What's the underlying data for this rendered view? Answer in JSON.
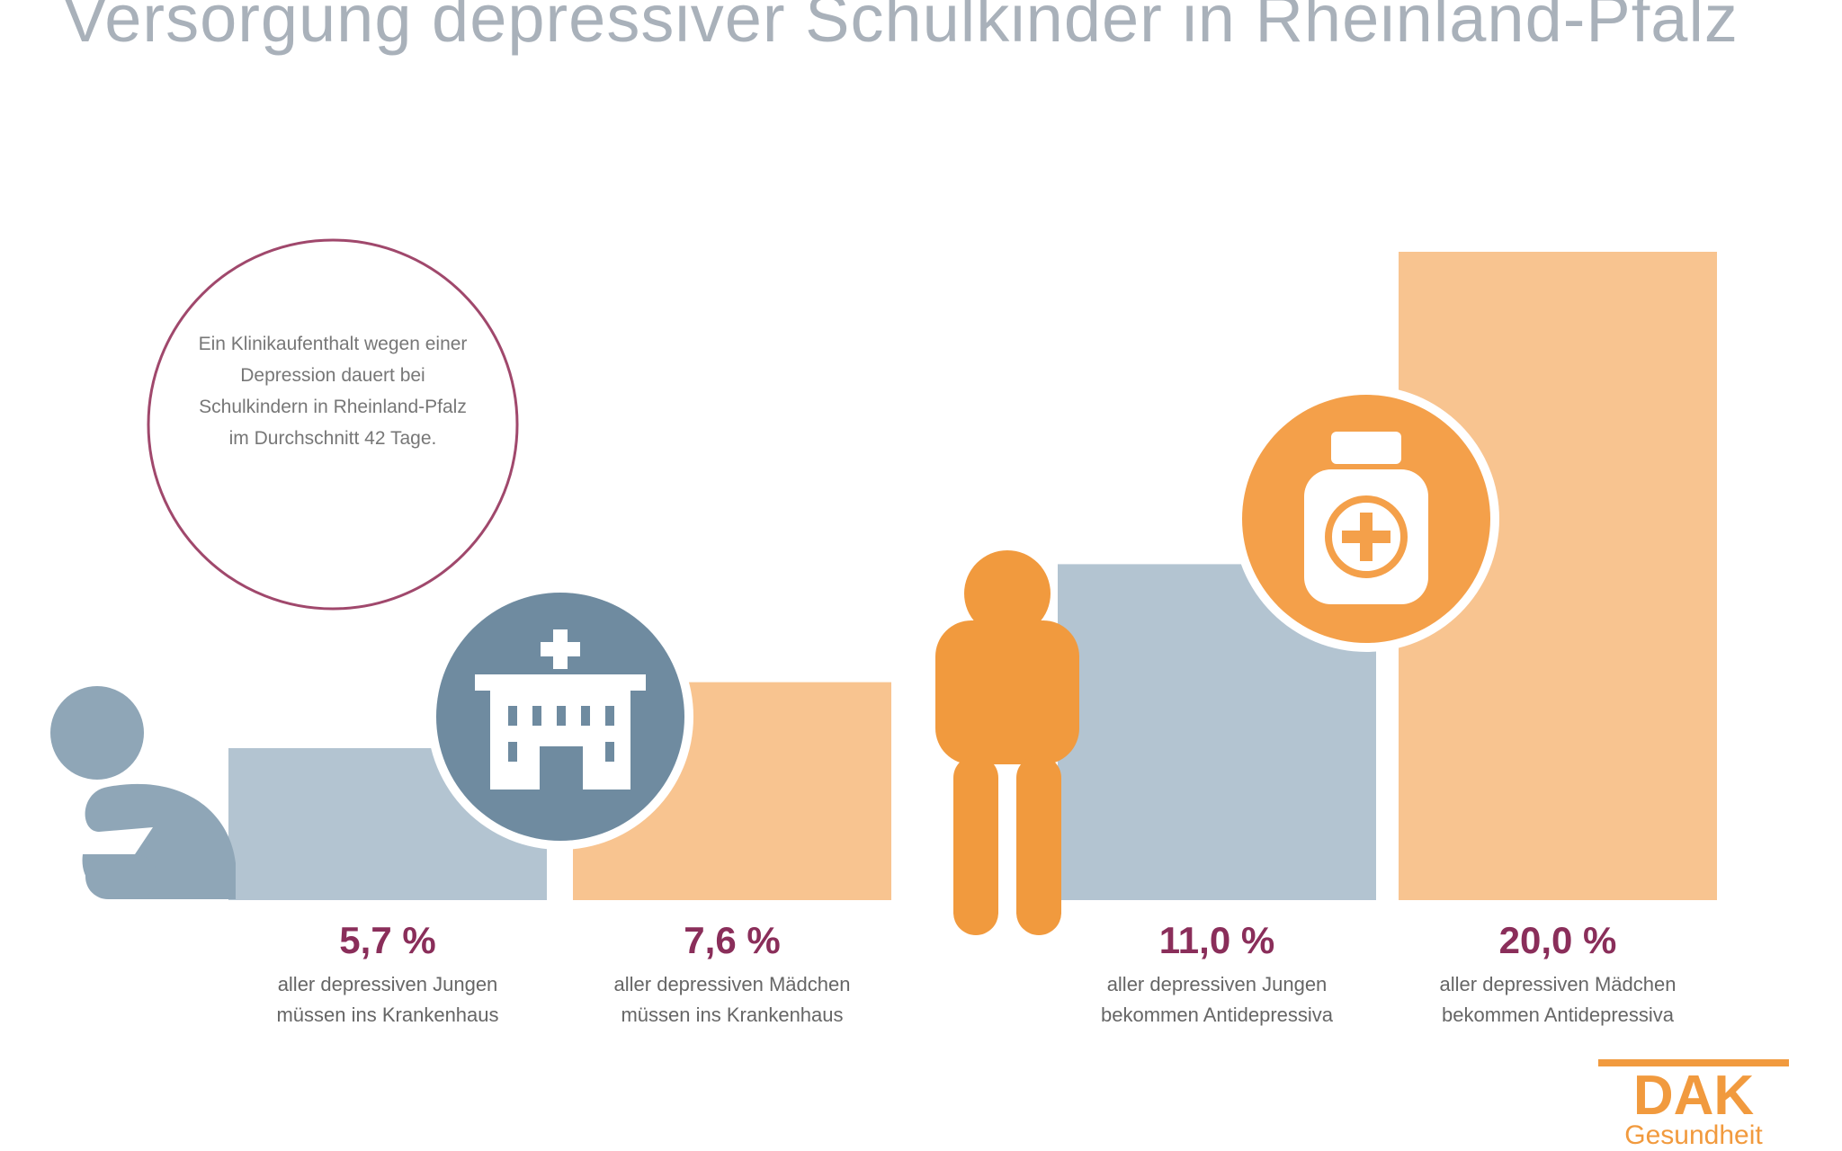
{
  "title": "Versorgung depressiver Schulkinder in Rheinland-Pfalz",
  "info_circle": "Ein Klinikaufenthalt wegen einer Depression dauert bei Schulkindern in Rheinland-Pfalz im Durchschnitt 42 Tage.",
  "colors": {
    "blue": "#b3c4d1",
    "orange": "#f8c490",
    "dark_blue": "#6f8ba0",
    "dark_orange": "#f4a04a",
    "accent": "#8a2e5a"
  },
  "chart_data": {
    "type": "bar",
    "categories": [
      "Jungen Krankenhaus",
      "Mädchen Krankenhaus",
      "Jungen Antidepressiva",
      "Mädchen Antidepressiva"
    ],
    "values": [
      5.7,
      7.6,
      11.0,
      20.0
    ],
    "value_labels": [
      "5,7 %",
      "7,6 %",
      "11,0 %",
      "20,0 %"
    ],
    "descriptions": [
      [
        "aller depressiven Jungen",
        "müssen ins Krankenhaus"
      ],
      [
        "aller depressiven Mädchen",
        "müssen ins Krankenhaus"
      ],
      [
        "aller depressiven Jungen",
        "bekommen Antidepressiva"
      ],
      [
        "aller depressiven Mädchen",
        "bekommen Antidepressiva"
      ]
    ],
    "series_colors": [
      "blue",
      "orange",
      "blue",
      "orange"
    ]
  },
  "logo": {
    "brand": "DAK",
    "tagline": "Gesundheit"
  }
}
